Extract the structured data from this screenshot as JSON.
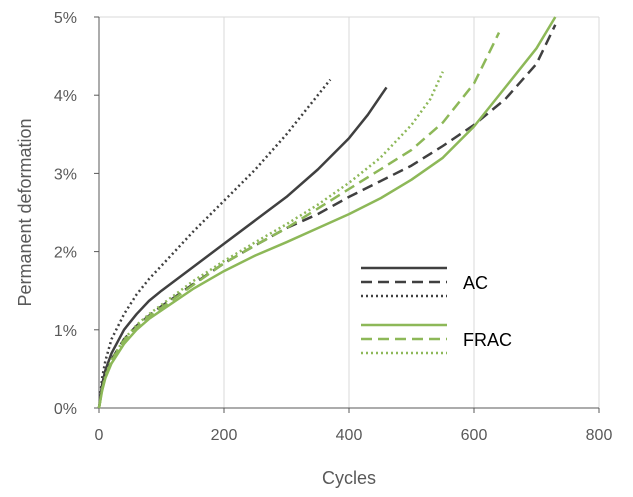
{
  "chart_data": {
    "type": "line",
    "xlabel": "Cycles",
    "ylabel": "Permanent deformation",
    "xlim": [
      0,
      800
    ],
    "ylim": [
      0,
      5
    ],
    "x_ticks": [
      0,
      200,
      400,
      600,
      800
    ],
    "x_tick_labels": [
      "0",
      "200",
      "400",
      "600",
      "800"
    ],
    "y_ticks": [
      0,
      1,
      2,
      3,
      4,
      5
    ],
    "y_tick_labels": [
      "0%",
      "1%",
      "2%",
      "3%",
      "4%",
      "5%"
    ],
    "grid": "vertical",
    "legend_position": "center-right",
    "legend_groups": [
      {
        "label": "AC",
        "color": "#404040"
      },
      {
        "label": "FRAC",
        "color": "#8DB858"
      }
    ],
    "series": [
      {
        "group": "AC",
        "color": "#404040",
        "dash": "solid",
        "points": [
          [
            0,
            0
          ],
          [
            5,
            0.3
          ],
          [
            10,
            0.48
          ],
          [
            20,
            0.7
          ],
          [
            40,
            1.0
          ],
          [
            60,
            1.2
          ],
          [
            80,
            1.37
          ],
          [
            100,
            1.5
          ],
          [
            150,
            1.8
          ],
          [
            200,
            2.1
          ],
          [
            250,
            2.4
          ],
          [
            300,
            2.7
          ],
          [
            350,
            3.05
          ],
          [
            400,
            3.45
          ],
          [
            430,
            3.75
          ],
          [
            460,
            4.1
          ]
        ]
      },
      {
        "group": "AC",
        "color": "#404040",
        "dash": "dashed",
        "points": [
          [
            0,
            0
          ],
          [
            5,
            0.25
          ],
          [
            10,
            0.42
          ],
          [
            20,
            0.62
          ],
          [
            40,
            0.88
          ],
          [
            60,
            1.05
          ],
          [
            80,
            1.18
          ],
          [
            100,
            1.3
          ],
          [
            150,
            1.58
          ],
          [
            200,
            1.85
          ],
          [
            250,
            2.08
          ],
          [
            300,
            2.3
          ],
          [
            350,
            2.48
          ],
          [
            400,
            2.7
          ],
          [
            450,
            2.9
          ],
          [
            500,
            3.1
          ],
          [
            550,
            3.35
          ],
          [
            600,
            3.62
          ],
          [
            650,
            3.95
          ],
          [
            700,
            4.4
          ],
          [
            730,
            4.9
          ]
        ]
      },
      {
        "group": "AC",
        "color": "#404040",
        "dash": "dotted",
        "points": [
          [
            0,
            0
          ],
          [
            5,
            0.38
          ],
          [
            10,
            0.6
          ],
          [
            20,
            0.88
          ],
          [
            40,
            1.2
          ],
          [
            60,
            1.45
          ],
          [
            80,
            1.65
          ],
          [
            100,
            1.82
          ],
          [
            150,
            2.25
          ],
          [
            200,
            2.65
          ],
          [
            250,
            3.05
          ],
          [
            300,
            3.5
          ],
          [
            330,
            3.8
          ],
          [
            350,
            4.0
          ],
          [
            370,
            4.2
          ]
        ]
      },
      {
        "group": "FRAC",
        "color": "#8DB858",
        "dash": "solid",
        "points": [
          [
            0,
            0
          ],
          [
            5,
            0.22
          ],
          [
            10,
            0.38
          ],
          [
            20,
            0.57
          ],
          [
            40,
            0.82
          ],
          [
            60,
            1.0
          ],
          [
            80,
            1.14
          ],
          [
            100,
            1.25
          ],
          [
            150,
            1.52
          ],
          [
            200,
            1.75
          ],
          [
            250,
            1.95
          ],
          [
            300,
            2.12
          ],
          [
            350,
            2.3
          ],
          [
            400,
            2.48
          ],
          [
            450,
            2.68
          ],
          [
            500,
            2.92
          ],
          [
            550,
            3.2
          ],
          [
            600,
            3.6
          ],
          [
            650,
            4.1
          ],
          [
            700,
            4.6
          ],
          [
            730,
            5.0
          ]
        ]
      },
      {
        "group": "FRAC",
        "color": "#8DB858",
        "dash": "dashed",
        "points": [
          [
            0,
            0
          ],
          [
            5,
            0.23
          ],
          [
            10,
            0.4
          ],
          [
            20,
            0.6
          ],
          [
            40,
            0.86
          ],
          [
            60,
            1.03
          ],
          [
            80,
            1.17
          ],
          [
            100,
            1.28
          ],
          [
            150,
            1.57
          ],
          [
            200,
            1.85
          ],
          [
            250,
            2.08
          ],
          [
            300,
            2.3
          ],
          [
            350,
            2.55
          ],
          [
            400,
            2.8
          ],
          [
            450,
            3.05
          ],
          [
            500,
            3.3
          ],
          [
            550,
            3.65
          ],
          [
            600,
            4.15
          ],
          [
            640,
            4.8
          ]
        ]
      },
      {
        "group": "FRAC",
        "color": "#8DB858",
        "dash": "dotted",
        "points": [
          [
            0,
            0
          ],
          [
            5,
            0.24
          ],
          [
            10,
            0.41
          ],
          [
            20,
            0.62
          ],
          [
            40,
            0.88
          ],
          [
            60,
            1.06
          ],
          [
            80,
            1.2
          ],
          [
            100,
            1.32
          ],
          [
            150,
            1.62
          ],
          [
            200,
            1.88
          ],
          [
            250,
            2.12
          ],
          [
            300,
            2.35
          ],
          [
            350,
            2.6
          ],
          [
            400,
            2.88
          ],
          [
            450,
            3.2
          ],
          [
            500,
            3.62
          ],
          [
            530,
            3.95
          ],
          [
            550,
            4.3
          ]
        ]
      }
    ]
  }
}
